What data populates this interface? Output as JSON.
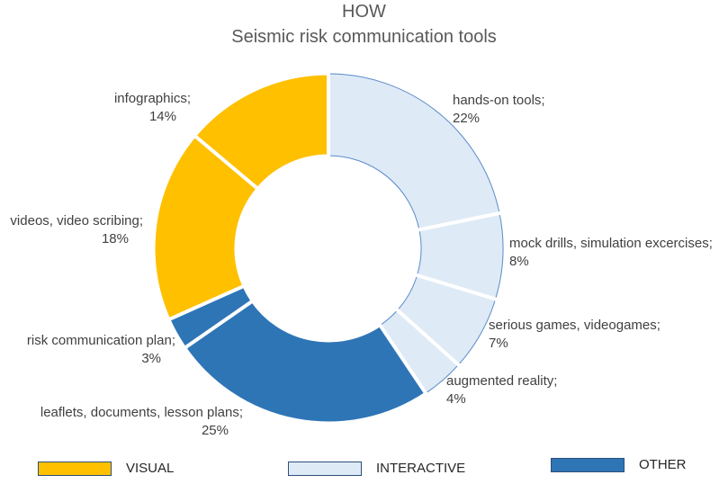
{
  "title_line1": "HOW",
  "title_line2": "Seismic risk communication tools",
  "colors": {
    "visual": "#FFC000",
    "interactive": "#DEEAF6",
    "other": "#2E75B6",
    "edge": "#5B8BC9"
  },
  "chart_data": {
    "type": "pie",
    "variant": "donut",
    "start": "12 o'clock, clockwise",
    "slices": [
      {
        "label": "hands-on tools;",
        "pct_label": "22%",
        "value": 22,
        "group": "interactive"
      },
      {
        "label": "mock drills, simulation excercises;",
        "pct_label": "8%",
        "value": 8,
        "group": "interactive"
      },
      {
        "label": "serious games, videogames;",
        "pct_label": "7%",
        "value": 7,
        "group": "interactive"
      },
      {
        "label": "augmented reality;",
        "pct_label": "4%",
        "value": 4,
        "group": "interactive"
      },
      {
        "label": "leaflets, documents, lesson plans;",
        "pct_label": "25%",
        "value": 25,
        "group": "other"
      },
      {
        "label": "risk communication plan;",
        "pct_label": "3%",
        "value": 3,
        "group": "other"
      },
      {
        "label": "videos, video scribing;",
        "pct_label": "18%",
        "value": 18,
        "group": "visual"
      },
      {
        "label": "infographics;",
        "pct_label": "14%",
        "value": 14,
        "group": "visual"
      }
    ],
    "legend": [
      {
        "label": "VISUAL",
        "group": "visual"
      },
      {
        "label": "INTERACTIVE",
        "group": "interactive"
      },
      {
        "label": "OTHER",
        "group": "other"
      }
    ],
    "legend_position": "bottom"
  }
}
